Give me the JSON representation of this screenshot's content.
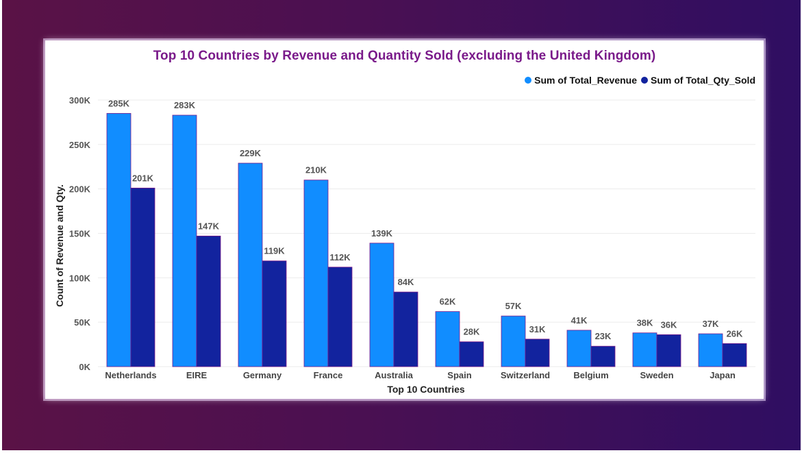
{
  "chart_data": {
    "type": "bar",
    "title": "Top 10 Countries by Revenue and Quantity Sold (excluding the United Kingdom)",
    "xlabel": "Top 10 Countries",
    "ylabel": "Count of Revenue and Qty.",
    "ylim": [
      0,
      300000
    ],
    "yticks": [
      {
        "value": 0,
        "label": "0K"
      },
      {
        "value": 50000,
        "label": "50K"
      },
      {
        "value": 100000,
        "label": "100K"
      },
      {
        "value": 150000,
        "label": "150K"
      },
      {
        "value": 200000,
        "label": "200K"
      },
      {
        "value": 250000,
        "label": "250K"
      },
      {
        "value": 300000,
        "label": "300K"
      }
    ],
    "grid": true,
    "legend_position": "top-right",
    "categories": [
      "Netherlands",
      "EIRE",
      "Germany",
      "France",
      "Australia",
      "Spain",
      "Switzerland",
      "Belgium",
      "Sweden",
      "Japan"
    ],
    "series": [
      {
        "name": "Sum of Total_Revenue",
        "color": "#118dff",
        "values": [
          285000,
          283000,
          229000,
          210000,
          139000,
          62000,
          57000,
          41000,
          38000,
          37000
        ],
        "labels": [
          "285K",
          "283K",
          "229K",
          "210K",
          "139K",
          "62K",
          "57K",
          "41K",
          "38K",
          "37K"
        ]
      },
      {
        "name": "Sum of Total_Qty_Sold",
        "color": "#12239e",
        "values": [
          201000,
          147000,
          119000,
          112000,
          84000,
          28000,
          31000,
          23000,
          36000,
          26000
        ],
        "labels": [
          "201K",
          "147K",
          "119K",
          "112K",
          "84K",
          "28K",
          "31K",
          "23K",
          "36K",
          "26K"
        ]
      }
    ]
  }
}
